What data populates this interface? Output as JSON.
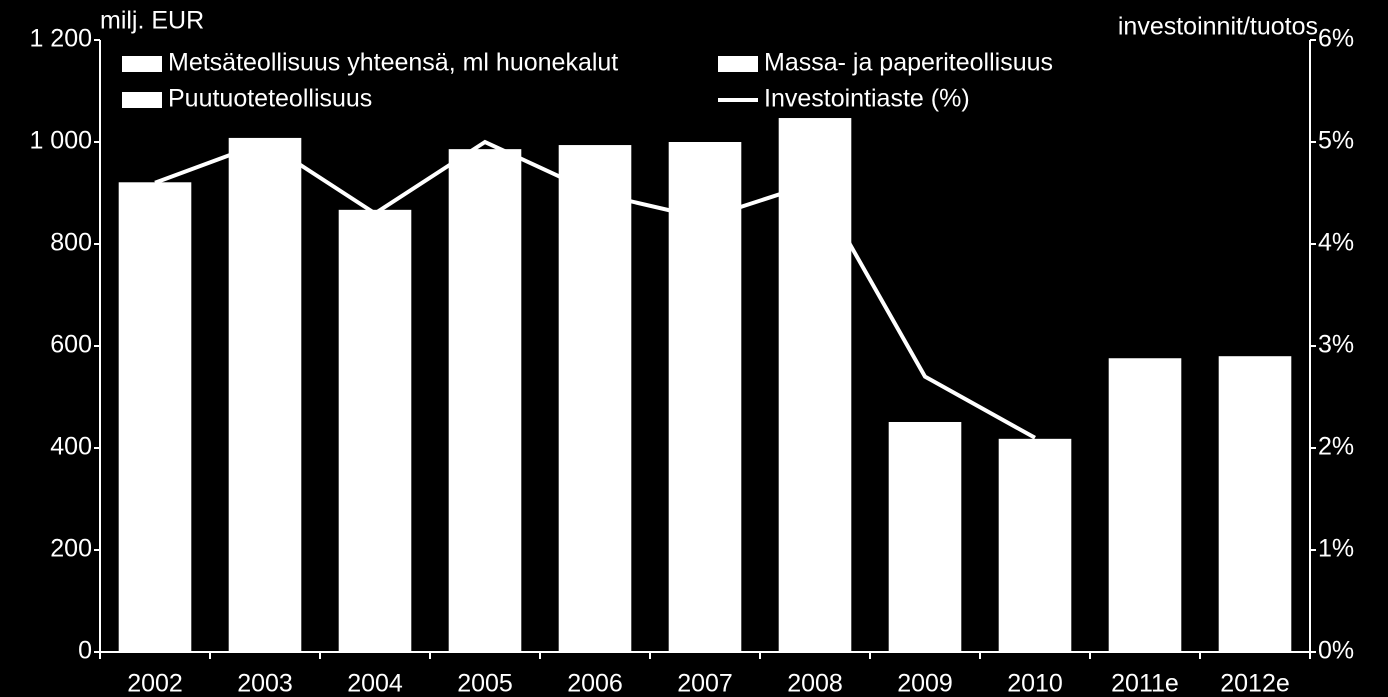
{
  "chart_data": {
    "type": "bar",
    "y_label": "milj. EUR",
    "y2_label": "investoinnit/tuotos",
    "categories": [
      "2002",
      "2003",
      "2004",
      "2005",
      "2006",
      "2007",
      "2008",
      "2009",
      "2010",
      "2011e",
      "2012e"
    ],
    "series": [
      {
        "name": "Metsäteollisuus yhteensä, ml huonekalut",
        "type": "bar",
        "color": "#ffffff",
        "values": [
          921,
          1008,
          867,
          986,
          994,
          1000,
          1047,
          451,
          418,
          576,
          580
        ]
      },
      {
        "name": "Massa- ja paperiteollisuus",
        "type": "bar",
        "color": "#ffffff",
        "values": [
          null,
          null,
          null,
          null,
          null,
          null,
          null,
          null,
          null,
          null,
          null
        ]
      },
      {
        "name": "Puutuoteteollisuus",
        "type": "bar",
        "color": "#ffffff",
        "values": [
          null,
          null,
          null,
          null,
          null,
          null,
          null,
          null,
          null,
          null,
          null
        ]
      },
      {
        "name": "Investointiaste (%)",
        "type": "line",
        "axis": "y2",
        "color": "#ffffff",
        "values": [
          4.6,
          5.0,
          4.3,
          5.0,
          4.5,
          4.25,
          4.6,
          2.7,
          2.1,
          null,
          null
        ]
      }
    ],
    "ylim": [
      0,
      1200
    ],
    "yticks": [
      0,
      200,
      400,
      600,
      800,
      {
        "value": 1000,
        "label": "1 000"
      },
      {
        "value": 1200,
        "label": "1 200"
      }
    ],
    "y2lim": [
      0,
      6
    ],
    "y2ticks": [
      {
        "value": 0,
        "label": "0%"
      },
      {
        "value": 1,
        "label": "1%"
      },
      {
        "value": 2,
        "label": "2%"
      },
      {
        "value": 3,
        "label": "3%"
      },
      {
        "value": 4,
        "label": "4%"
      },
      {
        "value": 5,
        "label": "5%"
      },
      {
        "value": 6,
        "label": "6%"
      }
    ],
    "legend": "top"
  }
}
